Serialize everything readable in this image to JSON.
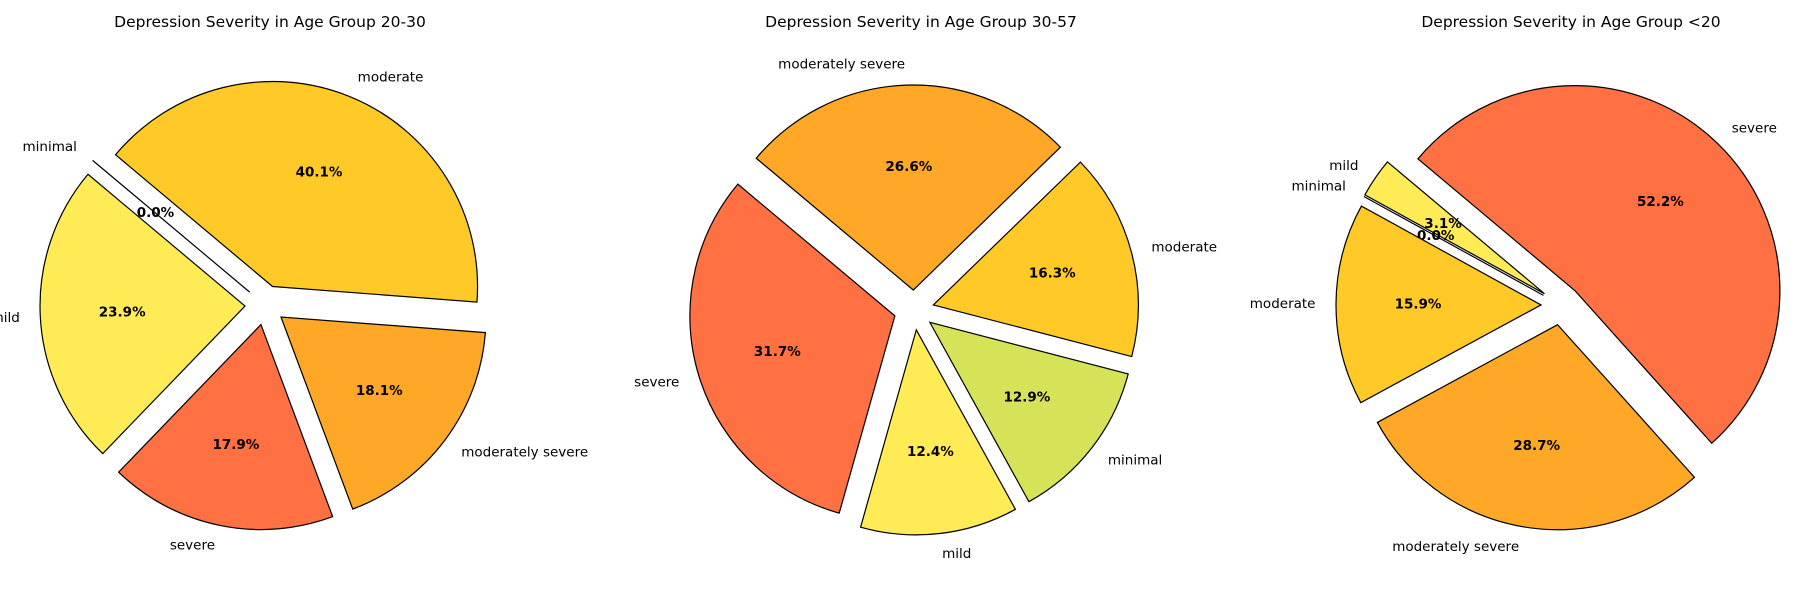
{
  "chart_data": [
    {
      "type": "pie",
      "title": "Depression Severity in Age Group 20-30",
      "start_angle_deg": 140,
      "slices": [
        {
          "label": "minimal",
          "value": 0.0,
          "pct_label": "0.0%",
          "color": "#D6E257"
        },
        {
          "label": "mild",
          "value": 23.9,
          "pct_label": "23.9%",
          "color": "#FFEB55"
        },
        {
          "label": "severe",
          "value": 17.9,
          "pct_label": "17.9%",
          "color": "#FF7043"
        },
        {
          "label": "moderately severe",
          "value": 18.1,
          "pct_label": "18.1%",
          "color": "#FFA726"
        },
        {
          "label": "moderate",
          "value": 40.1,
          "pct_label": "40.1%",
          "color": "#FFCA28"
        }
      ]
    },
    {
      "type": "pie",
      "title": "Depression Severity in Age Group 30-57",
      "start_angle_deg": 140,
      "slices": [
        {
          "label": "severe",
          "value": 31.7,
          "pct_label": "31.7%",
          "color": "#FF7043"
        },
        {
          "label": "mild",
          "value": 12.4,
          "pct_label": "12.4%",
          "color": "#FFEB55"
        },
        {
          "label": "minimal",
          "value": 12.9,
          "pct_label": "12.9%",
          "color": "#D6E257"
        },
        {
          "label": "moderate",
          "value": 16.3,
          "pct_label": "16.3%",
          "color": "#FFCA28"
        },
        {
          "label": "moderately severe",
          "value": 26.6,
          "pct_label": "26.6%",
          "color": "#FFA726"
        }
      ]
    },
    {
      "type": "pie",
      "title": "Depression Severity in Age Group <20",
      "start_angle_deg": 140,
      "slices": [
        {
          "label": "mild",
          "value": 3.1,
          "pct_label": "3.1%",
          "color": "#FFEB55"
        },
        {
          "label": "minimal",
          "value": 0.0,
          "pct_label": "0.0%",
          "color": "#D6E257"
        },
        {
          "label": "moderate",
          "value": 15.9,
          "pct_label": "15.9%",
          "color": "#FFCA28"
        },
        {
          "label": "moderately severe",
          "value": 28.7,
          "pct_label": "28.7%",
          "color": "#FFA726"
        },
        {
          "label": "severe",
          "value": 52.2,
          "pct_label": "52.2%",
          "color": "#FF7043"
        }
      ]
    }
  ]
}
